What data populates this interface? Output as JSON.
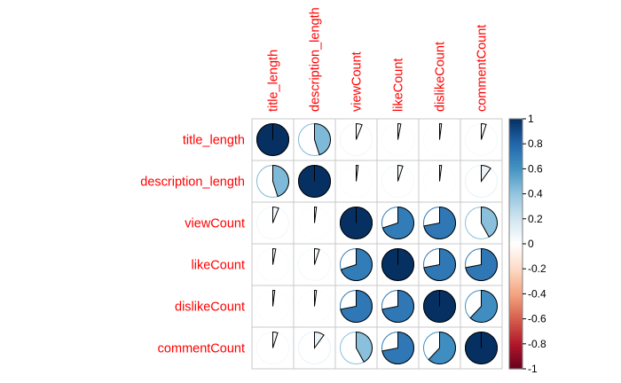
{
  "chart_data": {
    "type": "heatmap",
    "variant": "correlation-pie",
    "variables": [
      "title_length",
      "description_length",
      "viewCount",
      "likeCount",
      "dislikeCount",
      "commentCount"
    ],
    "matrix": [
      [
        1.0,
        0.45,
        0.06,
        0.03,
        0.02,
        0.05
      ],
      [
        0.45,
        1.0,
        0.02,
        0.05,
        0.02,
        0.1
      ],
      [
        0.06,
        0.02,
        1.0,
        0.7,
        0.72,
        0.42
      ],
      [
        0.03,
        0.05,
        0.7,
        1.0,
        0.72,
        0.72
      ],
      [
        0.02,
        0.02,
        0.72,
        0.72,
        1.0,
        0.62
      ],
      [
        0.05,
        0.1,
        0.42,
        0.72,
        0.62,
        1.0
      ]
    ],
    "colorbar": {
      "range": [
        -1,
        1
      ],
      "ticks": [
        "1",
        "0.8",
        "0.6",
        "0.4",
        "0.2",
        "0",
        "-0.2",
        "-0.4",
        "-0.6",
        "-0.8",
        "-1"
      ]
    },
    "label_color": "#ff0000",
    "palette": [
      "#67001F",
      "#B2182B",
      "#D6604D",
      "#F4A582",
      "#FDDBC7",
      "#FFFFFF",
      "#D1E5F0",
      "#92C5DE",
      "#4393C3",
      "#2166AC",
      "#053061"
    ]
  }
}
